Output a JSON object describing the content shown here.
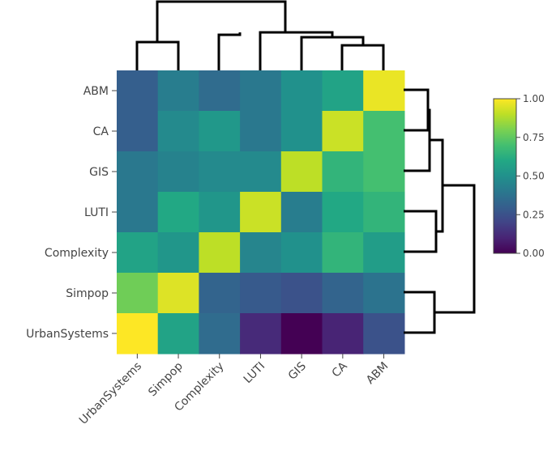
{
  "chart_data": {
    "type": "heatmap",
    "title": "",
    "xlabel": "",
    "ylabel": "",
    "x_categories": [
      "UrbanSystems",
      "Simpop",
      "Complexity",
      "LUTI",
      "GIS",
      "CA",
      "ABM"
    ],
    "y_categories": [
      "ABM",
      "CA",
      "GIS",
      "LUTI",
      "Complexity",
      "Simpop",
      "UrbanSystems"
    ],
    "values": [
      [
        0.3,
        0.42,
        0.35,
        0.4,
        0.5,
        0.58,
        0.97
      ],
      [
        0.3,
        0.47,
        0.53,
        0.4,
        0.5,
        0.92,
        0.7
      ],
      [
        0.4,
        0.44,
        0.47,
        0.47,
        0.9,
        0.65,
        0.7
      ],
      [
        0.4,
        0.6,
        0.52,
        0.92,
        0.42,
        0.6,
        0.65
      ],
      [
        0.58,
        0.52,
        0.9,
        0.45,
        0.5,
        0.65,
        0.55
      ],
      [
        0.78,
        0.95,
        0.32,
        0.28,
        0.25,
        0.32,
        0.38
      ],
      [
        1.0,
        0.58,
        0.35,
        0.12,
        0.0,
        0.1,
        0.25
      ]
    ],
    "colorscale": "viridis",
    "colorbar": {
      "range": [
        0,
        1
      ],
      "ticks": [
        "0.00",
        "0.25",
        "0.50",
        "0.75",
        "1.00"
      ]
    },
    "grid": false,
    "legend_placement": "right",
    "dendrogram_top": true,
    "dendrogram_right": true
  },
  "colors": {
    "background": "#ffffff",
    "text": "#444444",
    "dendrogram": "#000000"
  }
}
